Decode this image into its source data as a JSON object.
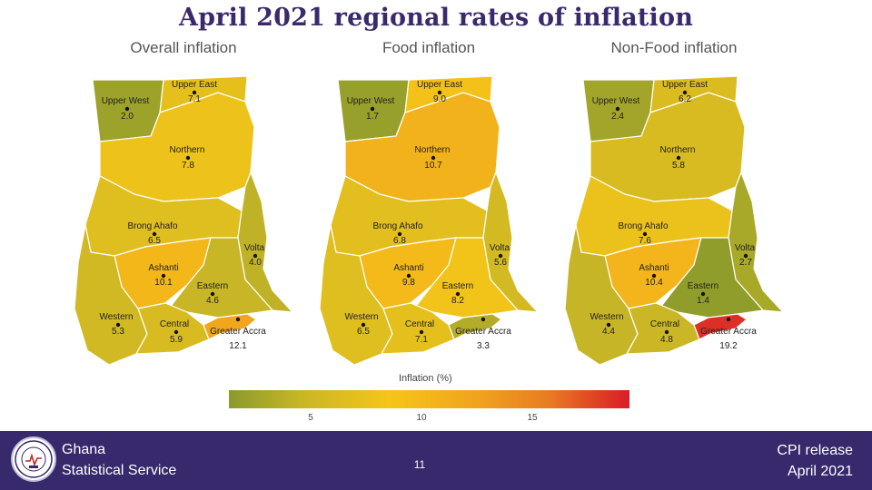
{
  "title": "April 2021 regional rates of inflation",
  "maps": [
    {
      "title": "Overall inflation",
      "regions": [
        {
          "name": "Upper West",
          "value": "2.0"
        },
        {
          "name": "Upper East",
          "value": "7.1"
        },
        {
          "name": "Northern",
          "value": "7.8"
        },
        {
          "name": "Brong Ahafo",
          "value": "6.5"
        },
        {
          "name": "Volta",
          "value": "4.0"
        },
        {
          "name": "Ashanti",
          "value": "10.1"
        },
        {
          "name": "Eastern",
          "value": "4.6"
        },
        {
          "name": "Western",
          "value": "5.3"
        },
        {
          "name": "Central",
          "value": "5.9"
        },
        {
          "name": "Greater Accra",
          "value": "12.1"
        }
      ]
    },
    {
      "title": "Food inflation",
      "regions": [
        {
          "name": "Upper West",
          "value": "1.7"
        },
        {
          "name": "Upper East",
          "value": "9.0"
        },
        {
          "name": "Northern",
          "value": "10.7"
        },
        {
          "name": "Brong Ahafo",
          "value": "6.8"
        },
        {
          "name": "Volta",
          "value": "5.6"
        },
        {
          "name": "Ashanti",
          "value": "9.8"
        },
        {
          "name": "Eastern",
          "value": "8.2"
        },
        {
          "name": "Western",
          "value": "6.5"
        },
        {
          "name": "Central",
          "value": "7.1"
        },
        {
          "name": "Greater Accra",
          "value": "3.3"
        }
      ]
    },
    {
      "title": "Non-Food inflation",
      "regions": [
        {
          "name": "Upper West",
          "value": "2.4"
        },
        {
          "name": "Upper East",
          "value": "6.2"
        },
        {
          "name": "Northern",
          "value": "5.8"
        },
        {
          "name": "Brong Ahafo",
          "value": "7.6"
        },
        {
          "name": "Volta",
          "value": "2.7"
        },
        {
          "name": "Ashanti",
          "value": "10.4"
        },
        {
          "name": "Eastern",
          "value": "1.4"
        },
        {
          "name": "Western",
          "value": "4.4"
        },
        {
          "name": "Central",
          "value": "4.8"
        },
        {
          "name": "Greater Accra",
          "value": "19.2"
        }
      ]
    }
  ],
  "legend": {
    "title": "Inflation  (%)",
    "ticks": [
      "5",
      "10",
      "15"
    ],
    "tick_values": [
      5,
      10,
      15
    ],
    "range": [
      1,
      20
    ],
    "colors": [
      "#8a9a2c",
      "#f5c518",
      "#e87b22",
      "#d91c26"
    ]
  },
  "footer": {
    "org_line1": "Ghana",
    "org_line2": "Statistical Service",
    "page_number": "11",
    "release_line1": "CPI release",
    "release_line2": "April  2021",
    "bg_color": "#37296b"
  }
}
